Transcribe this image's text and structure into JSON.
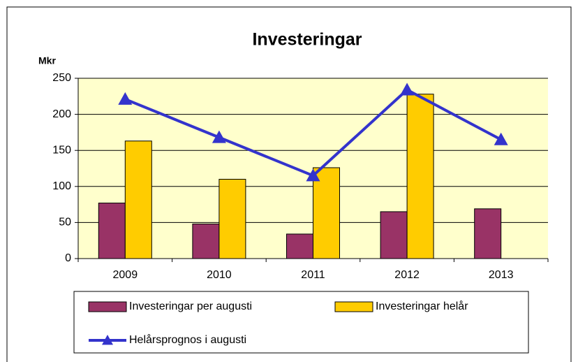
{
  "chart_data": {
    "type": "bar",
    "title": "Investeringar",
    "y_label": "Mkr",
    "categories": [
      "2009",
      "2010",
      "2011",
      "2012",
      "2013"
    ],
    "series": [
      {
        "name": "Investeringar per augusti",
        "color": "#993366",
        "values": [
          77,
          48,
          34,
          65,
          69
        ]
      },
      {
        "name": "Investeringar helår",
        "color": "#ffcc00",
        "values": [
          163,
          110,
          126,
          228,
          null
        ]
      },
      {
        "name": "Helårsprognos i augusti",
        "color": "#3333cc",
        "type": "line",
        "values": [
          221,
          168,
          115,
          234,
          165
        ]
      }
    ],
    "ylim": [
      0,
      250
    ],
    "yticks": [
      0,
      50,
      100,
      150,
      200,
      250
    ],
    "grid": true,
    "plot_background": "#ffffcc"
  }
}
